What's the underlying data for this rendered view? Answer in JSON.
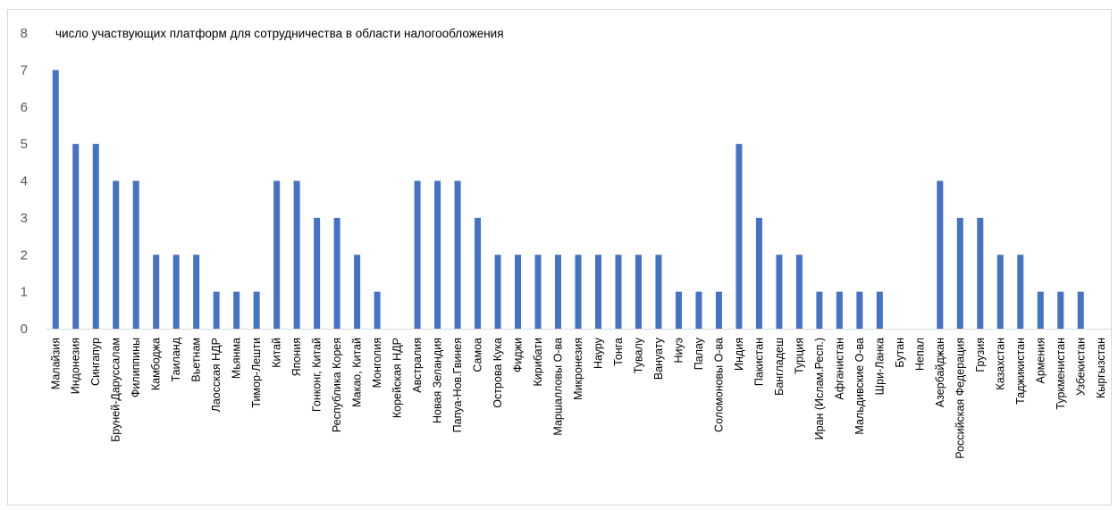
{
  "chart_data": {
    "type": "bar",
    "title": "число участвующих платформ для сотрудничества в области налогообложения",
    "xlabel": "",
    "ylabel": "",
    "ylim": [
      0,
      8
    ],
    "yticks": [
      0,
      1,
      2,
      3,
      4,
      5,
      6,
      7,
      8
    ],
    "grid": false,
    "legend": "none",
    "bar_color": "#4472c4",
    "categories": [
      "Малайзия",
      "Индонезия",
      "Сингапур",
      "Бруней-Даруссалам",
      "Филиппины",
      "Камбоджа",
      "Таиланд",
      "Вьетнам",
      "Лаосская НДР",
      "Мьянма",
      "Тимор-Лешти",
      "Китай",
      "Япония",
      "Гонконг, Китай",
      "Республика Корея",
      "Макао, Китай",
      "Монголия",
      "Корейская НДР",
      "Австралия",
      "Новая Зеландия",
      "Папуа-Нов.Гвинея",
      "Самоа",
      "Острова Кука",
      "Фиджи",
      "Кирибати",
      "Маршалловы О-ва",
      "Микронезия",
      "Науру",
      "Тонга",
      "Тувалу",
      "Вануату",
      "Ниуэ",
      "Палау",
      "Соломоновы О-ва",
      "Индия",
      "Пакистан",
      "Бангладеш",
      "Турция",
      "Иран (Ислам.Респ.)",
      "Афганистан",
      "Мальдивские О-ва",
      "Шри-Ланка",
      "Бутан",
      "Непал",
      "Азербайджан",
      "Российская Федерация",
      "Грузия",
      "Казахстан",
      "Таджикистан",
      "Армения",
      "Туркменистан",
      "Узбекистан",
      "Кыргызстан"
    ],
    "values": [
      7,
      5,
      5,
      4,
      4,
      2,
      2,
      2,
      1,
      1,
      1,
      4,
      4,
      3,
      3,
      2,
      1,
      0,
      4,
      4,
      4,
      3,
      2,
      2,
      2,
      2,
      2,
      2,
      2,
      2,
      2,
      1,
      1,
      1,
      5,
      3,
      2,
      2,
      1,
      1,
      1,
      1,
      0,
      0,
      4,
      3,
      3,
      2,
      2,
      1,
      1,
      1,
      0
    ]
  }
}
